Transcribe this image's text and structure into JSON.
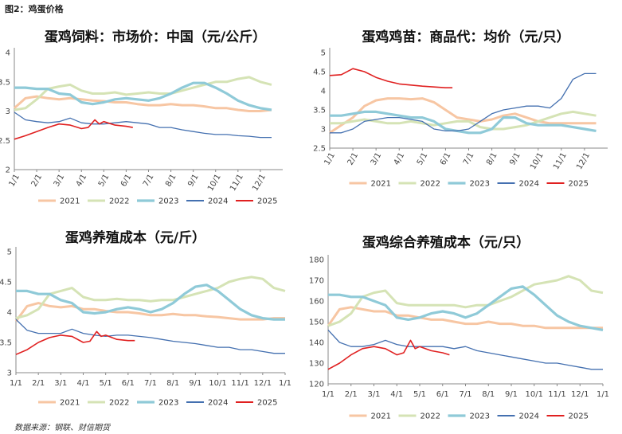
{
  "figure": {
    "title": "图2：鸡蛋价格",
    "source": "数据来源：钢联、财信期货"
  },
  "colors": {
    "2021": "#f7c6a3",
    "2022": "#d5e3b5",
    "2023": "#8fcad8",
    "2024": "#4470b0",
    "2025": "#e02020"
  },
  "chart_data": [
    {
      "type": "line",
      "title": "蛋鸡饲料：市场价：中国（元/公斤）",
      "x_ticks": [
        "1/1",
        "2/1",
        "3/1",
        "4/1",
        "5/1",
        "6/1",
        "7/1",
        "8/1",
        "9/1",
        "10/1",
        "11/1",
        "12/1"
      ],
      "ylim": [
        2,
        4
      ],
      "y_ticks": [
        "2",
        "2.5",
        "3",
        "3.5",
        "4"
      ],
      "legend_position": "bottom",
      "series": [
        {
          "name": "2021",
          "x": [
            0,
            0.5,
            1,
            1.5,
            2,
            2.5,
            3,
            3.5,
            4,
            4.5,
            5,
            5.5,
            6,
            6.5,
            7,
            7.5,
            8,
            8.5,
            9,
            9.5,
            10,
            10.5,
            11,
            11.5
          ],
          "y": [
            3.05,
            3.22,
            3.25,
            3.22,
            3.2,
            3.22,
            3.2,
            3.18,
            3.17,
            3.15,
            3.15,
            3.12,
            3.1,
            3.1,
            3.12,
            3.1,
            3.1,
            3.08,
            3.05,
            3.05,
            3.02,
            3.0,
            3.0,
            3.02
          ]
        },
        {
          "name": "2022",
          "x": [
            0,
            0.5,
            1,
            1.5,
            2,
            2.5,
            3,
            3.5,
            4,
            4.5,
            5,
            5.5,
            6,
            6.5,
            7,
            7.5,
            8,
            8.5,
            9,
            9.5,
            10,
            10.5,
            11,
            11.5
          ],
          "y": [
            3.02,
            3.05,
            3.2,
            3.38,
            3.42,
            3.45,
            3.35,
            3.3,
            3.3,
            3.32,
            3.28,
            3.3,
            3.32,
            3.3,
            3.3,
            3.35,
            3.4,
            3.45,
            3.5,
            3.5,
            3.55,
            3.58,
            3.5,
            3.45
          ]
        },
        {
          "name": "2023",
          "x": [
            0,
            0.5,
            1,
            1.5,
            2,
            2.5,
            3,
            3.5,
            4,
            4.5,
            5,
            5.5,
            6,
            6.5,
            7,
            7.5,
            8,
            8.5,
            9,
            9.5,
            10,
            10.5,
            11,
            11.5
          ],
          "y": [
            3.4,
            3.4,
            3.38,
            3.38,
            3.3,
            3.28,
            3.15,
            3.12,
            3.15,
            3.2,
            3.22,
            3.2,
            3.18,
            3.22,
            3.3,
            3.4,
            3.48,
            3.48,
            3.4,
            3.3,
            3.18,
            3.1,
            3.05,
            3.02
          ]
        },
        {
          "name": "2024",
          "x": [
            0,
            0.5,
            1,
            1.5,
            2,
            2.5,
            3,
            3.5,
            4,
            4.5,
            5,
            5.5,
            6,
            6.5,
            7,
            7.5,
            8,
            8.5,
            9,
            9.5,
            10,
            10.5,
            11,
            11.5
          ],
          "y": [
            2.98,
            2.85,
            2.82,
            2.8,
            2.82,
            2.88,
            2.8,
            2.78,
            2.78,
            2.8,
            2.82,
            2.8,
            2.78,
            2.72,
            2.72,
            2.68,
            2.65,
            2.62,
            2.6,
            2.6,
            2.58,
            2.57,
            2.55,
            2.55
          ]
        },
        {
          "name": "2025",
          "x": [
            0,
            0.5,
            1,
            1.5,
            2,
            2.5,
            3,
            3.3,
            3.6,
            3.8,
            4,
            4.5,
            5,
            5.3
          ],
          "y": [
            2.52,
            2.58,
            2.65,
            2.72,
            2.78,
            2.76,
            2.7,
            2.72,
            2.85,
            2.78,
            2.82,
            2.76,
            2.74,
            2.72
          ]
        }
      ]
    },
    {
      "type": "line",
      "title": "蛋鸡鸡苗：商品代：均价（元/只）",
      "x_ticks": [
        "1/1",
        "2/1",
        "3/1",
        "4/1",
        "5/1",
        "6/1",
        "7/1",
        "8/1",
        "9/1",
        "10/1",
        "11/1",
        "12/1"
      ],
      "ylim": [
        2.5,
        5
      ],
      "y_ticks": [
        "2.5",
        "3",
        "3.5",
        "4",
        "4.5",
        "5"
      ],
      "legend_position": "bottom",
      "series": [
        {
          "name": "2021",
          "x": [
            0,
            0.5,
            1,
            1.5,
            2,
            2.5,
            3,
            3.5,
            4,
            4.5,
            5,
            5.5,
            6,
            6.5,
            7,
            7.5,
            8,
            8.5,
            9,
            9.5,
            10,
            10.5,
            11,
            11.5
          ],
          "y": [
            2.9,
            3.1,
            3.3,
            3.6,
            3.75,
            3.8,
            3.8,
            3.78,
            3.8,
            3.7,
            3.5,
            3.3,
            3.25,
            3.2,
            3.25,
            3.35,
            3.4,
            3.3,
            3.2,
            3.15,
            3.15,
            3.15,
            3.15,
            3.15
          ]
        },
        {
          "name": "2022",
          "x": [
            0,
            0.5,
            1,
            1.5,
            2,
            2.5,
            3,
            3.5,
            4,
            4.5,
            5,
            5.5,
            6,
            6.5,
            7,
            7.5,
            8,
            8.5,
            9,
            9.5,
            10,
            10.5,
            11,
            11.5
          ],
          "y": [
            3.15,
            3.15,
            3.2,
            3.25,
            3.2,
            3.15,
            3.15,
            3.2,
            3.15,
            3.1,
            3.15,
            3.2,
            3.2,
            3.05,
            3.0,
            3.0,
            3.05,
            3.1,
            3.2,
            3.3,
            3.4,
            3.45,
            3.4,
            3.35
          ]
        },
        {
          "name": "2023",
          "x": [
            0,
            0.5,
            1,
            1.5,
            2,
            2.5,
            3,
            3.5,
            4,
            4.5,
            5,
            5.5,
            6,
            6.5,
            7,
            7.5,
            8,
            8.5,
            9,
            9.5,
            10,
            10.5,
            11,
            11.5
          ],
          "y": [
            3.35,
            3.35,
            3.4,
            3.45,
            3.45,
            3.4,
            3.35,
            3.3,
            3.3,
            3.2,
            3.0,
            2.95,
            2.9,
            2.9,
            3.0,
            3.3,
            3.3,
            3.15,
            3.1,
            3.1,
            3.1,
            3.05,
            3.0,
            2.95
          ]
        },
        {
          "name": "2024",
          "x": [
            0,
            0.5,
            1,
            1.5,
            2,
            2.5,
            3,
            3.5,
            4,
            4.5,
            5,
            5.5,
            6,
            6.5,
            7,
            7.5,
            8,
            8.5,
            9,
            9.5,
            10,
            10.5,
            11,
            11.5
          ],
          "y": [
            2.9,
            2.9,
            3.0,
            3.2,
            3.25,
            3.3,
            3.3,
            3.25,
            3.2,
            3.0,
            2.95,
            2.95,
            3.0,
            3.2,
            3.4,
            3.5,
            3.55,
            3.6,
            3.6,
            3.55,
            3.8,
            4.3,
            4.45,
            4.45
          ]
        },
        {
          "name": "2025",
          "x": [
            0,
            0.5,
            1,
            1.5,
            2,
            2.5,
            3,
            3.5,
            4,
            4.5,
            5,
            5.3
          ],
          "y": [
            4.4,
            4.42,
            4.58,
            4.5,
            4.35,
            4.25,
            4.18,
            4.15,
            4.12,
            4.1,
            4.08,
            4.08
          ]
        }
      ]
    },
    {
      "type": "line",
      "title": "蛋鸡养殖成本（元/斤）",
      "x_ticks": [
        "1/1",
        "2/1",
        "3/1",
        "4/1",
        "5/1",
        "6/1",
        "7/1",
        "8/1",
        "9/1",
        "10/1",
        "11/1",
        "12/1",
        "1/1"
      ],
      "ylim": [
        3,
        5
      ],
      "y_ticks": [
        "3",
        "3.5",
        "4",
        "4.5",
        "5"
      ],
      "legend_position": "bottom",
      "series": [
        {
          "name": "2021",
          "x": [
            0,
            0.5,
            1,
            1.5,
            2,
            2.5,
            3,
            3.5,
            4,
            4.5,
            5,
            5.5,
            6,
            6.5,
            7,
            7.5,
            8,
            8.5,
            9,
            9.5,
            10,
            10.5,
            11,
            11.5,
            12
          ],
          "y": [
            3.85,
            4.1,
            4.15,
            4.1,
            4.08,
            4.1,
            4.05,
            4.05,
            4.02,
            4.0,
            4.0,
            3.98,
            3.95,
            3.95,
            3.97,
            3.95,
            3.95,
            3.93,
            3.92,
            3.9,
            3.88,
            3.88,
            3.88,
            3.9,
            3.9
          ]
        },
        {
          "name": "2022",
          "x": [
            0,
            0.5,
            1,
            1.5,
            2,
            2.5,
            3,
            3.5,
            4,
            4.5,
            5,
            5.5,
            6,
            6.5,
            7,
            7.5,
            8,
            8.5,
            9,
            9.5,
            10,
            10.5,
            11,
            11.5,
            12
          ],
          "y": [
            3.9,
            3.95,
            4.05,
            4.3,
            4.35,
            4.4,
            4.25,
            4.2,
            4.2,
            4.22,
            4.2,
            4.2,
            4.18,
            4.2,
            4.2,
            4.25,
            4.3,
            4.35,
            4.4,
            4.5,
            4.55,
            4.58,
            4.55,
            4.4,
            4.35
          ]
        },
        {
          "name": "2023",
          "x": [
            0,
            0.5,
            1,
            1.5,
            2,
            2.5,
            3,
            3.5,
            4,
            4.5,
            5,
            5.5,
            6,
            6.5,
            7,
            7.5,
            8,
            8.5,
            9,
            9.5,
            10,
            10.5,
            11,
            11.5,
            12
          ],
          "y": [
            4.35,
            4.35,
            4.3,
            4.3,
            4.2,
            4.15,
            4.0,
            3.98,
            4.0,
            4.05,
            4.08,
            4.05,
            4.0,
            4.05,
            4.15,
            4.3,
            4.42,
            4.45,
            4.35,
            4.2,
            4.05,
            3.95,
            3.9,
            3.88,
            3.88
          ]
        },
        {
          "name": "2024",
          "x": [
            0,
            0.5,
            1,
            1.5,
            2,
            2.5,
            3,
            3.5,
            4,
            4.5,
            5,
            5.5,
            6,
            6.5,
            7,
            7.5,
            8,
            8.5,
            9,
            9.5,
            10,
            10.5,
            11,
            11.5,
            12
          ],
          "y": [
            3.88,
            3.7,
            3.65,
            3.65,
            3.65,
            3.72,
            3.65,
            3.62,
            3.6,
            3.62,
            3.62,
            3.6,
            3.58,
            3.55,
            3.52,
            3.5,
            3.48,
            3.45,
            3.42,
            3.42,
            3.38,
            3.38,
            3.35,
            3.32,
            3.32
          ]
        },
        {
          "name": "2025",
          "x": [
            0,
            0.5,
            1,
            1.5,
            2,
            2.5,
            3,
            3.3,
            3.6,
            3.8,
            4,
            4.5,
            5,
            5.3
          ],
          "y": [
            3.3,
            3.38,
            3.5,
            3.58,
            3.62,
            3.6,
            3.5,
            3.52,
            3.68,
            3.6,
            3.62,
            3.55,
            3.53,
            3.53
          ]
        }
      ]
    },
    {
      "type": "line",
      "title": "蛋鸡综合养殖成本（元/只）",
      "x_ticks": [
        "1/1",
        "2/1",
        "3/1",
        "4/1",
        "5/1",
        "6/1",
        "7/1",
        "8/1",
        "9/1",
        "10/1",
        "11/1",
        "12/1",
        "1/1"
      ],
      "ylim": [
        120,
        180
      ],
      "y_ticks": [
        "120",
        "130",
        "140",
        "150",
        "160",
        "170",
        "180"
      ],
      "legend_position": "bottom",
      "series": [
        {
          "name": "2021",
          "x": [
            0,
            0.5,
            1,
            1.5,
            2,
            2.5,
            3,
            3.5,
            4,
            4.5,
            5,
            5.5,
            6,
            6.5,
            7,
            7.5,
            8,
            8.5,
            9,
            9.5,
            10,
            10.5,
            11,
            11.5,
            12
          ],
          "y": [
            148,
            156,
            157,
            156,
            155,
            155,
            153,
            153,
            152,
            151,
            151,
            150,
            149,
            149,
            150,
            149,
            149,
            148,
            148,
            147,
            147,
            147,
            147,
            147,
            147
          ]
        },
        {
          "name": "2022",
          "x": [
            0,
            0.5,
            1,
            1.5,
            2,
            2.5,
            3,
            3.5,
            4,
            4.5,
            5,
            5.5,
            6,
            6.5,
            7,
            7.5,
            8,
            8.5,
            9,
            9.5,
            10,
            10.5,
            11,
            11.5,
            12
          ],
          "y": [
            148,
            150,
            154,
            162,
            164,
            165,
            159,
            158,
            158,
            158,
            158,
            158,
            157,
            158,
            158,
            160,
            162,
            165,
            168,
            169,
            170,
            172,
            170,
            165,
            164
          ]
        },
        {
          "name": "2023",
          "x": [
            0,
            0.5,
            1,
            1.5,
            2,
            2.5,
            3,
            3.5,
            4,
            4.5,
            5,
            5.5,
            6,
            6.5,
            7,
            7.5,
            8,
            8.5,
            9,
            9.5,
            10,
            10.5,
            11,
            11.5,
            12
          ],
          "y": [
            163,
            163,
            162,
            162,
            160,
            158,
            152,
            151,
            152,
            154,
            155,
            154,
            152,
            154,
            158,
            162,
            166,
            167,
            163,
            158,
            153,
            150,
            148,
            147,
            146
          ]
        },
        {
          "name": "2024",
          "x": [
            0,
            0.5,
            1,
            1.5,
            2,
            2.5,
            3,
            3.5,
            4,
            4.5,
            5,
            5.5,
            6,
            6.5,
            7,
            7.5,
            8,
            8.5,
            9,
            9.5,
            10,
            10.5,
            11,
            11.5,
            12
          ],
          "y": [
            146,
            140,
            138,
            138,
            139,
            141,
            139,
            138,
            138,
            138,
            138,
            137,
            138,
            136,
            135,
            134,
            133,
            132,
            131,
            130,
            130,
            129,
            128,
            127,
            127
          ]
        },
        {
          "name": "2025",
          "x": [
            0,
            0.5,
            1,
            1.5,
            2,
            2.5,
            3,
            3.3,
            3.6,
            3.8,
            4,
            4.5,
            5,
            5.3
          ],
          "y": [
            127,
            130,
            134,
            137,
            138,
            137,
            134,
            135,
            141,
            137,
            138,
            136,
            135,
            134
          ]
        }
      ]
    }
  ]
}
